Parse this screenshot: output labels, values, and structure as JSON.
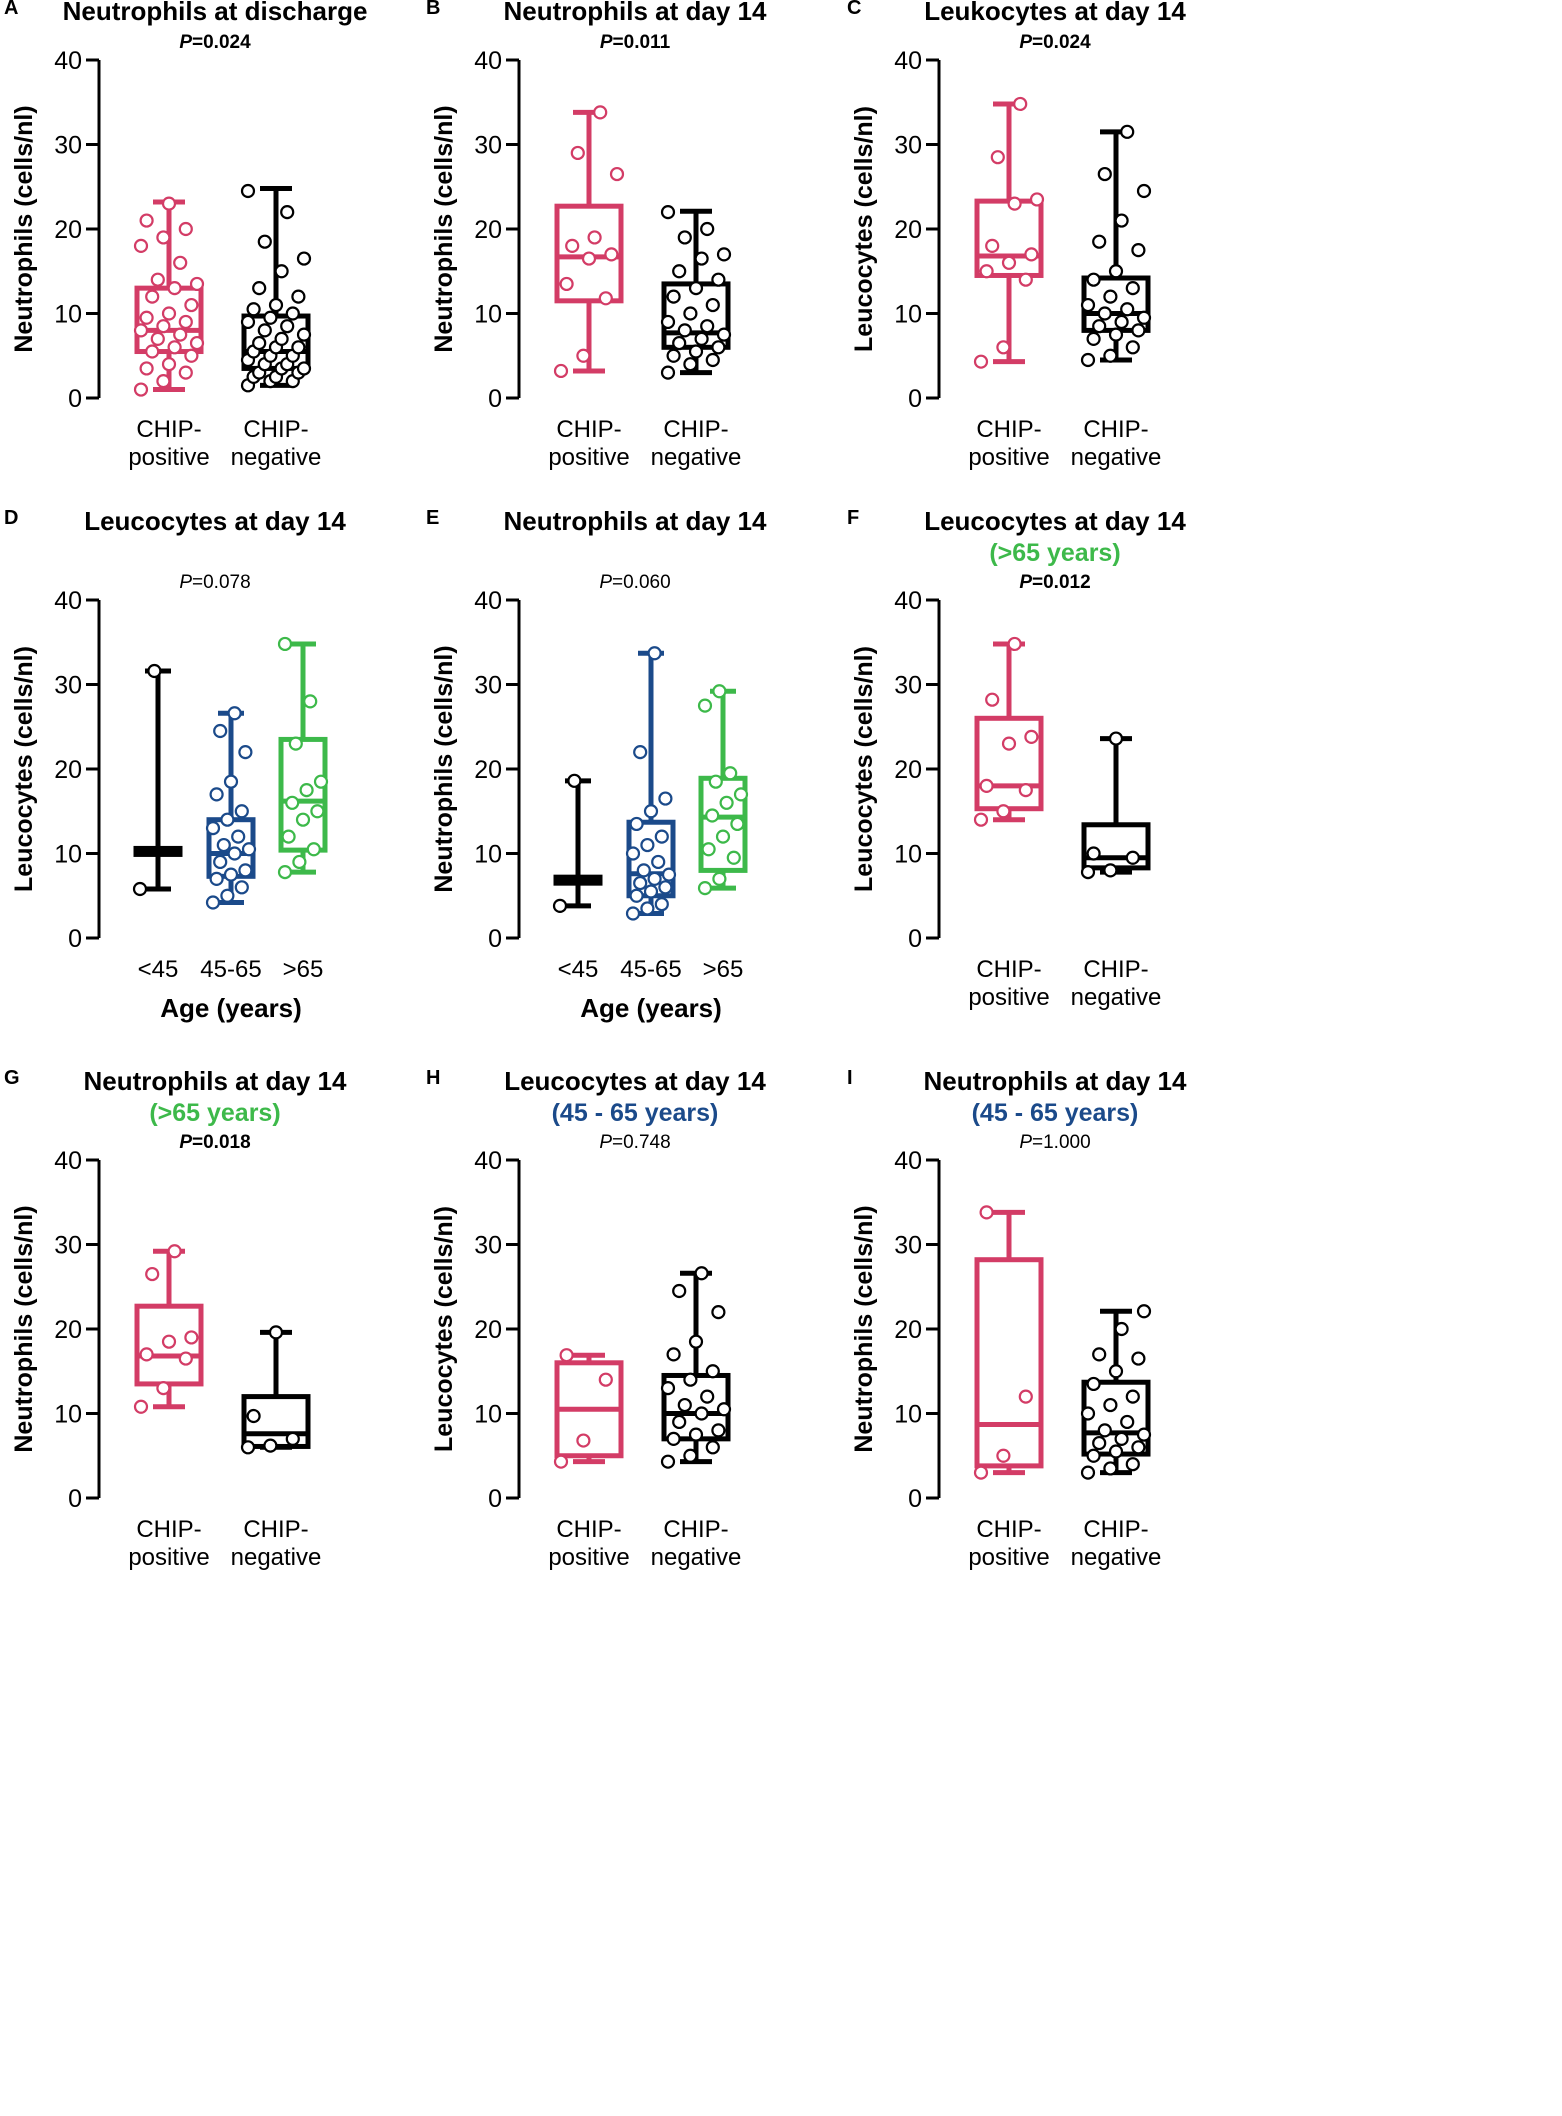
{
  "colors": {
    "pos": "#d33c66",
    "neg": "#000000",
    "young": "#000000",
    "mid": "#1b4a8a",
    "old": "#3db94a"
  },
  "chart_data": [
    {
      "type": "box",
      "letter": "A",
      "title": "Neutrophils at discharge",
      "subtitle": "",
      "p_label": "P",
      "p_value": "=0.024",
      "p_bold": true,
      "ylabel": "Neutrophils (cells/nl)",
      "xlabel": "",
      "ylim": [
        0,
        40
      ],
      "yticks": [
        0,
        10,
        20,
        30,
        40
      ],
      "groups": [
        {
          "label": [
            "CHIP-",
            "positive"
          ],
          "color_key": "pos",
          "min": 1.0,
          "q1": 5.5,
          "median": 8.0,
          "q3": 13.0,
          "max": 23.2,
          "points": [
            1.0,
            2.0,
            3.0,
            3.5,
            4.0,
            5.0,
            5.5,
            6.0,
            6.5,
            7.0,
            7.5,
            8.0,
            8.5,
            9.0,
            9.5,
            10.0,
            11.0,
            12.0,
            13.0,
            13.5,
            14.0,
            16.0,
            18.0,
            19.0,
            20.0,
            21.0,
            23.0
          ]
        },
        {
          "label": [
            "CHIP-",
            "negative"
          ],
          "color_key": "neg",
          "min": 1.5,
          "q1": 3.5,
          "median": 5.5,
          "q3": 9.7,
          "max": 24.8,
          "points": [
            1.5,
            2.0,
            2.0,
            2.5,
            2.5,
            3.0,
            3.0,
            3.5,
            3.5,
            4.0,
            4.0,
            4.5,
            5.0,
            5.0,
            5.5,
            6.0,
            6.0,
            6.5,
            7.0,
            7.5,
            8.0,
            8.5,
            9.0,
            9.5,
            10.0,
            10.5,
            11.0,
            12.0,
            13.0,
            15.0,
            16.5,
            18.5,
            22.0,
            24.5
          ]
        }
      ]
    },
    {
      "type": "box",
      "letter": "B",
      "title": "Neutrophils at day 14",
      "subtitle": "",
      "p_label": "P",
      "p_value": "=0.011",
      "p_bold": true,
      "ylabel": "Neutrophils (cells/nl)",
      "xlabel": "",
      "ylim": [
        0,
        40
      ],
      "yticks": [
        0,
        10,
        20,
        30,
        40
      ],
      "groups": [
        {
          "label": [
            "CHIP-",
            "positive"
          ],
          "color_key": "pos",
          "min": 3.2,
          "q1": 11.5,
          "median": 16.7,
          "q3": 22.7,
          "max": 33.8,
          "points": [
            3.2,
            5.0,
            11.8,
            13.5,
            16.5,
            17.0,
            18.0,
            19.0,
            26.5,
            29.0,
            33.8
          ]
        },
        {
          "label": [
            "CHIP-",
            "negative"
          ],
          "color_key": "neg",
          "min": 3.0,
          "q1": 6.0,
          "median": 7.7,
          "q3": 13.5,
          "max": 22.1,
          "points": [
            3.0,
            4.0,
            4.5,
            5.0,
            5.5,
            6.0,
            6.5,
            7.0,
            7.5,
            8.0,
            8.5,
            9.0,
            10.0,
            11.0,
            12.0,
            13.0,
            14.0,
            15.0,
            16.5,
            17.0,
            19.0,
            20.0,
            22.0
          ]
        }
      ]
    },
    {
      "type": "box",
      "letter": "C",
      "title": "Leukocytes at day 14",
      "subtitle": "",
      "p_label": "P",
      "p_value": "=0.024",
      "p_bold": true,
      "ylabel": "Leucocytes (cells/nl)",
      "xlabel": "",
      "ylim": [
        0,
        40
      ],
      "yticks": [
        0,
        10,
        20,
        30,
        40
      ],
      "groups": [
        {
          "label": [
            "CHIP-",
            "positive"
          ],
          "color_key": "pos",
          "min": 4.3,
          "q1": 14.5,
          "median": 16.8,
          "q3": 23.3,
          "max": 34.8,
          "points": [
            4.3,
            6.0,
            14.0,
            15.0,
            16.0,
            17.0,
            18.0,
            23.0,
            23.5,
            28.5,
            34.8
          ]
        },
        {
          "label": [
            "CHIP-",
            "negative"
          ],
          "color_key": "neg",
          "min": 4.5,
          "q1": 8.0,
          "median": 10.0,
          "q3": 14.2,
          "max": 31.5,
          "points": [
            4.5,
            5.0,
            6.0,
            7.0,
            7.5,
            8.0,
            8.5,
            9.0,
            9.5,
            10.0,
            10.5,
            11.0,
            12.0,
            13.0,
            14.0,
            15.0,
            17.5,
            18.5,
            21.0,
            24.5,
            26.5,
            31.5
          ]
        }
      ]
    },
    {
      "type": "box",
      "letter": "D",
      "title": "Leucocytes at day 14",
      "subtitle": "",
      "p_label": "P",
      "p_value": "=0.078",
      "p_bold": false,
      "ylabel": "Leucocytes (cells/nl)",
      "xlabel": "Age (years)",
      "ylim": [
        0,
        40
      ],
      "yticks": [
        0,
        10,
        20,
        30,
        40
      ],
      "groups": [
        {
          "label": [
            "<45"
          ],
          "color_key": "young",
          "min": 5.8,
          "q1": 10.0,
          "median": 10.3,
          "q3": 10.6,
          "max": 31.6,
          "points": [
            5.8,
            31.6
          ]
        },
        {
          "label": [
            "45-65"
          ],
          "color_key": "mid",
          "min": 4.2,
          "q1": 7.3,
          "median": 10.0,
          "q3": 14.0,
          "max": 26.6,
          "points": [
            4.2,
            5.0,
            6.0,
            7.0,
            7.5,
            8.0,
            9.0,
            10.0,
            10.5,
            11.0,
            12.0,
            13.0,
            14.0,
            15.0,
            17.0,
            18.5,
            22.0,
            24.5,
            26.6
          ]
        },
        {
          "label": [
            ">65"
          ],
          "color_key": "old",
          "min": 7.8,
          "q1": 10.4,
          "median": 16.2,
          "q3": 23.5,
          "max": 34.8,
          "points": [
            7.8,
            9.0,
            10.5,
            12.0,
            14.0,
            15.0,
            16.0,
            17.5,
            18.5,
            23.0,
            28.0,
            34.8
          ]
        }
      ]
    },
    {
      "type": "box",
      "letter": "E",
      "title": "Neutrophils at day 14",
      "subtitle": "",
      "p_label": "P",
      "p_value": "=0.060",
      "p_bold": false,
      "ylabel": "Neutrophils (cells/nl)",
      "xlabel": "Age (years)",
      "ylim": [
        0,
        40
      ],
      "yticks": [
        0,
        10,
        20,
        30,
        40
      ],
      "groups": [
        {
          "label": [
            "<45"
          ],
          "color_key": "young",
          "min": 3.8,
          "q1": 6.5,
          "median": 6.8,
          "q3": 7.2,
          "max": 18.6,
          "points": [
            3.8,
            18.6
          ]
        },
        {
          "label": [
            "45-65"
          ],
          "color_key": "mid",
          "min": 2.9,
          "q1": 5.0,
          "median": 7.6,
          "q3": 13.7,
          "max": 33.7,
          "points": [
            2.9,
            3.5,
            4.0,
            5.0,
            5.5,
            6.0,
            6.5,
            7.0,
            7.5,
            8.0,
            9.0,
            10.0,
            11.0,
            12.0,
            13.5,
            15.0,
            16.5,
            22.0,
            33.7
          ]
        },
        {
          "label": [
            ">65"
          ],
          "color_key": "old",
          "min": 5.9,
          "q1": 8.0,
          "median": 14.3,
          "q3": 18.9,
          "max": 29.2,
          "points": [
            5.9,
            7.0,
            9.5,
            10.5,
            12.0,
            13.5,
            14.5,
            16.0,
            17.0,
            18.5,
            19.5,
            27.5,
            29.2
          ]
        }
      ]
    },
    {
      "type": "box",
      "letter": "F",
      "title": "Leucocytes at day 14",
      "subtitle": "(>65 years)",
      "subtitle_color_key": "old",
      "p_label": "P",
      "p_value": "=0.012",
      "p_bold": true,
      "ylabel": "Leucocytes (cells/nl)",
      "xlabel": "",
      "ylim": [
        0,
        40
      ],
      "yticks": [
        0,
        10,
        20,
        30,
        40
      ],
      "groups": [
        {
          "label": [
            "CHIP-",
            "positive"
          ],
          "color_key": "pos",
          "min": 14.0,
          "q1": 15.3,
          "median": 18.0,
          "q3": 26.0,
          "max": 34.8,
          "points": [
            14.0,
            15.0,
            17.5,
            18.0,
            23.0,
            23.8,
            28.2,
            34.8
          ]
        },
        {
          "label": [
            "CHIP-",
            "negative"
          ],
          "color_key": "neg",
          "min": 7.8,
          "q1": 8.3,
          "median": 9.5,
          "q3": 13.4,
          "max": 23.6,
          "points": [
            7.8,
            8.0,
            9.5,
            10.0,
            23.6
          ]
        }
      ]
    },
    {
      "type": "box",
      "letter": "G",
      "title": "Neutrophils at day 14",
      "subtitle": "(>65 years)",
      "subtitle_color_key": "old",
      "p_label": "P",
      "p_value": "=0.018",
      "p_bold": true,
      "ylabel": "Neutrophils (cells/nl)",
      "xlabel": "",
      "ylim": [
        0,
        40
      ],
      "yticks": [
        0,
        10,
        20,
        30,
        40
      ],
      "groups": [
        {
          "label": [
            "CHIP-",
            "positive"
          ],
          "color_key": "pos",
          "min": 10.8,
          "q1": 13.5,
          "median": 16.8,
          "q3": 22.7,
          "max": 29.2,
          "points": [
            10.8,
            13.0,
            16.5,
            17.0,
            18.5,
            19.0,
            26.5,
            29.2
          ]
        },
        {
          "label": [
            "CHIP-",
            "negative"
          ],
          "color_key": "neg",
          "min": 6.0,
          "q1": 6.1,
          "median": 7.6,
          "q3": 12.0,
          "max": 19.6,
          "points": [
            6.0,
            6.2,
            7.0,
            9.7,
            19.6
          ]
        }
      ]
    },
    {
      "type": "box",
      "letter": "H",
      "title": "Leucocytes at day 14",
      "subtitle": "(45 - 65 years)",
      "subtitle_color_key": "mid",
      "p_label": "P",
      "p_value": "=0.748",
      "p_bold": false,
      "ylabel": "Leucocytes (cells/nl)",
      "xlabel": "",
      "ylim": [
        0,
        40
      ],
      "yticks": [
        0,
        10,
        20,
        30,
        40
      ],
      "groups": [
        {
          "label": [
            "CHIP-",
            "positive"
          ],
          "color_key": "pos",
          "min": 4.3,
          "q1": 5.0,
          "median": 10.5,
          "q3": 16.0,
          "max": 16.9,
          "points": [
            4.3,
            6.8,
            14.0,
            16.9
          ]
        },
        {
          "label": [
            "CHIP-",
            "negative"
          ],
          "color_key": "neg",
          "min": 4.3,
          "q1": 7.0,
          "median": 10.0,
          "q3": 14.5,
          "max": 26.6,
          "points": [
            4.3,
            5.0,
            6.0,
            7.0,
            7.5,
            8.0,
            9.0,
            10.0,
            10.5,
            11.0,
            12.0,
            13.0,
            14.0,
            15.0,
            17.0,
            18.5,
            22.0,
            24.5,
            26.6
          ]
        }
      ]
    },
    {
      "type": "box",
      "letter": "I",
      "title": "Neutrophils at day 14",
      "subtitle": "(45 - 65 years)",
      "subtitle_color_key": "mid",
      "p_label": "P",
      "p_value": "=1.000",
      "p_bold": false,
      "ylabel": "Neutrophils (cells/nl)",
      "xlabel": "",
      "ylim": [
        0,
        40
      ],
      "yticks": [
        0,
        10,
        20,
        30,
        40
      ],
      "groups": [
        {
          "label": [
            "CHIP-",
            "positive"
          ],
          "color_key": "pos",
          "min": 3.0,
          "q1": 3.8,
          "median": 8.7,
          "q3": 28.2,
          "max": 33.8,
          "points": [
            3.0,
            5.0,
            12.0,
            33.8
          ]
        },
        {
          "label": [
            "CHIP-",
            "negative"
          ],
          "color_key": "neg",
          "min": 3.0,
          "q1": 5.2,
          "median": 7.7,
          "q3": 13.7,
          "max": 22.1,
          "points": [
            3.0,
            3.5,
            4.0,
            5.0,
            5.5,
            6.0,
            6.5,
            7.0,
            7.5,
            8.0,
            9.0,
            10.0,
            11.0,
            12.0,
            13.5,
            15.0,
            16.5,
            17.0,
            20.0,
            22.1
          ]
        }
      ]
    }
  ]
}
